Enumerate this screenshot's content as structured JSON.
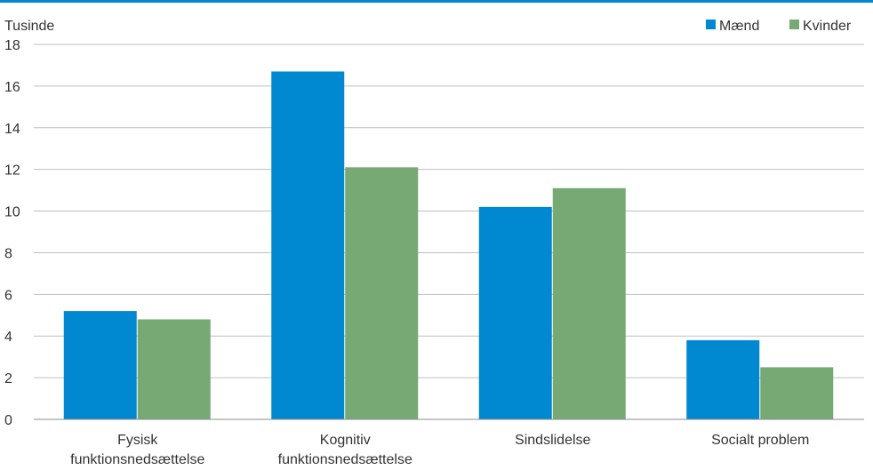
{
  "chart_data": {
    "type": "bar",
    "unit_label": "Tusinde",
    "categories": [
      [
        "Fysisk",
        "funktionsnedsættelse"
      ],
      [
        "Kognitiv",
        "funktionsnedsættelse"
      ],
      [
        "Sindslidelse"
      ],
      [
        "Socialt problem"
      ]
    ],
    "series": [
      {
        "name": "Mænd",
        "color": "#0088D0",
        "values": [
          5.2,
          16.7,
          10.2,
          3.8
        ]
      },
      {
        "name": "Kvinder",
        "color": "#76A973",
        "values": [
          4.8,
          12.1,
          11.1,
          2.5
        ]
      }
    ],
    "ylim": [
      0,
      18
    ],
    "yticks": [
      "0",
      "2",
      "4",
      "6",
      "8",
      "10",
      "12",
      "14",
      "16",
      "18"
    ],
    "grid": true,
    "legend_position": "top-right",
    "accent_color": "#0088D0"
  }
}
